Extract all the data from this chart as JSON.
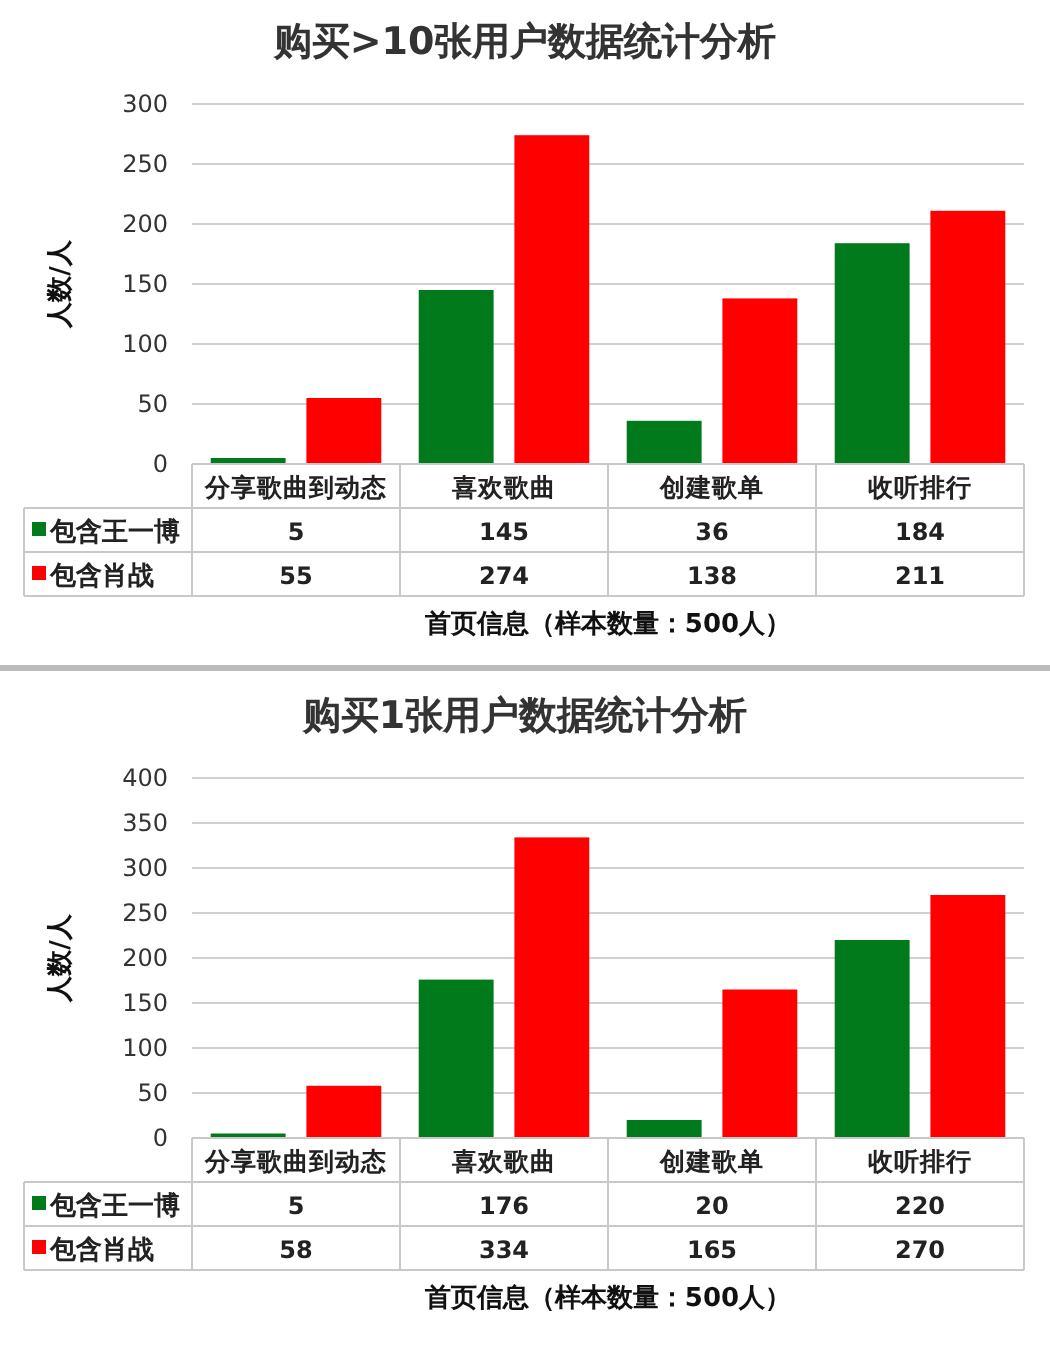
{
  "chart_data": [
    {
      "type": "bar",
      "title": "购买>10张用户数据统计分析",
      "xlabel": "首页信息（样本数量：500人）",
      "ylabel": "人数/人",
      "categories": [
        "分享歌曲到动态",
        "喜欢歌曲",
        "创建歌单",
        "收听排行"
      ],
      "series": [
        {
          "name": "包含王一博",
          "color": "#007a1a",
          "values": [
            5,
            145,
            36,
            184
          ]
        },
        {
          "name": "包含肖战",
          "color": "#ff0000",
          "values": [
            55,
            274,
            138,
            211
          ]
        }
      ],
      "ylim": [
        0,
        300
      ],
      "yticks": [
        0,
        50,
        100,
        150,
        200,
        250,
        300
      ],
      "grid": "y",
      "data_labels": true,
      "legend": "bottom left"
    },
    {
      "type": "bar",
      "title": "购买1张用户数据统计分析",
      "xlabel": "首页信息（样本数量：500人）",
      "ylabel": "人数/人",
      "categories": [
        "分享歌曲到动态",
        "喜欢歌曲",
        "创建歌单",
        "收听排行"
      ],
      "series": [
        {
          "name": "包含王一博",
          "color": "#007a1a",
          "values": [
            5,
            176,
            20,
            220
          ]
        },
        {
          "name": "包含肖战",
          "color": "#ff0000",
          "values": [
            58,
            334,
            165,
            270
          ]
        }
      ],
      "ylim": [
        0,
        400
      ],
      "yticks": [
        0,
        50,
        100,
        150,
        200,
        250,
        300,
        350,
        400
      ],
      "grid": "y",
      "data_labels": true,
      "legend": "bottom left"
    }
  ]
}
